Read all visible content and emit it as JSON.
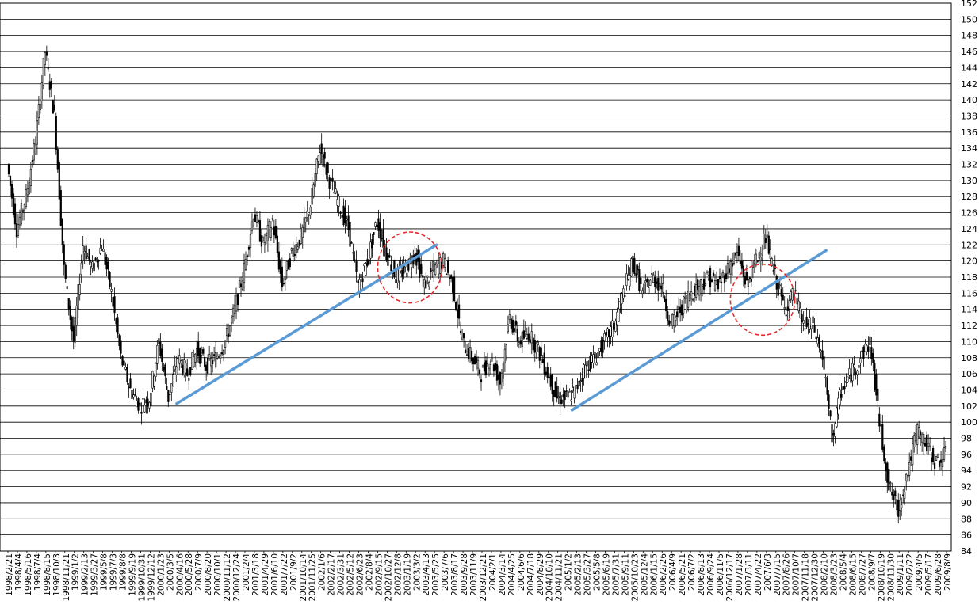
{
  "chart_data": {
    "type": "candlestick",
    "title": "",
    "xlabel": "",
    "ylabel": "",
    "ylim": [
      84,
      152
    ],
    "y_ticks": [
      84,
      86,
      88,
      90,
      92,
      94,
      96,
      98,
      100,
      102,
      104,
      106,
      108,
      110,
      112,
      114,
      116,
      118,
      120,
      122,
      124,
      126,
      128,
      130,
      132,
      134,
      136,
      138,
      140,
      142,
      144,
      146,
      148,
      150,
      152
    ],
    "y_axis_position": "right",
    "grid": true,
    "x_tick_labels": [
      "1998/2/21",
      "1998/4/4",
      "1998/5/16",
      "1998/7/4",
      "1998/8/15",
      "1998/10/3",
      "1998/11/21",
      "1999/1/2",
      "1999/2/13",
      "1999/3/27",
      "1999/5/8",
      "1999/7/3",
      "1999/8/8",
      "1999/9/19",
      "1999/10/31",
      "1999/12/12",
      "2000/1/23",
      "2000/3/5",
      "2000/4/16",
      "2000/5/28",
      "2000/7/9",
      "2000/8/20",
      "2000/10/1",
      "2000/11/12",
      "2000/12/24",
      "2001/2/4",
      "2001/3/18",
      "2001/4/29",
      "2001/6/10",
      "2001/7/22",
      "2001/9/2",
      "2001/10/14",
      "2001/11/25",
      "2002/1/6",
      "2002/2/17",
      "2002/3/31",
      "2002/5/12",
      "2002/6/23",
      "2002/8/4",
      "2002/9/15",
      "2002/10/27",
      "2002/12/8",
      "2003/1/19",
      "2003/3/2",
      "2003/4/13",
      "2003/5/25",
      "2003/7/6",
      "2003/8/17",
      "2003/9/28",
      "2003/11/9",
      "2003/12/21",
      "2004/2/1",
      "2004/3/14",
      "2004/4/25",
      "2004/6/6",
      "2004/7/18",
      "2004/8/29",
      "2004/10/10",
      "2004/11/21",
      "2005/1/2",
      "2005/2/13",
      "2005/3/27",
      "2005/5/8",
      "2005/6/19",
      "2005/7/31",
      "2005/9/11",
      "2005/10/23",
      "2005/12/4",
      "2006/1/15",
      "2006/2/26",
      "2006/4/9",
      "2006/5/21",
      "2006/7/2",
      "2006/8/13",
      "2006/9/24",
      "2006/11/5",
      "2006/12/17",
      "2007/1/28",
      "2007/3/11",
      "2007/4/22",
      "2007/6/3",
      "2007/7/15",
      "2007/8/26",
      "2007/10/7",
      "2007/11/18",
      "2007/12/30",
      "2008/2/10",
      "2008/3/23",
      "2008/5/4",
      "2008/6/15",
      "2008/7/27",
      "2008/9/7",
      "2008/10/19",
      "2008/11/30",
      "2009/1/11",
      "2009/2/22",
      "2009/4/5",
      "2009/5/17",
      "2009/6/28",
      "2009/8/9"
    ],
    "series": [
      {
        "values": [
          {
            "x": 0,
            "y": 132
          },
          {
            "x": 1,
            "y": 124
          },
          {
            "x": 2,
            "y": 128
          },
          {
            "x": 3,
            "y": 135
          },
          {
            "x": 4,
            "y": 146
          },
          {
            "x": 5,
            "y": 138
          },
          {
            "x": 6,
            "y": 119
          },
          {
            "x": 7,
            "y": 110
          },
          {
            "x": 8,
            "y": 122
          },
          {
            "x": 9,
            "y": 119
          },
          {
            "x": 10,
            "y": 122
          },
          {
            "x": 11,
            "y": 116
          },
          {
            "x": 12,
            "y": 108
          },
          {
            "x": 13,
            "y": 104
          },
          {
            "x": 14,
            "y": 102
          },
          {
            "x": 15,
            "y": 103
          },
          {
            "x": 16,
            "y": 110
          },
          {
            "x": 17,
            "y": 103
          },
          {
            "x": 18,
            "y": 108
          },
          {
            "x": 19,
            "y": 106
          },
          {
            "x": 20,
            "y": 109
          },
          {
            "x": 21,
            "y": 107
          },
          {
            "x": 22,
            "y": 108
          },
          {
            "x": 23,
            "y": 110
          },
          {
            "x": 24,
            "y": 114
          },
          {
            "x": 25,
            "y": 119
          },
          {
            "x": 26,
            "y": 126
          },
          {
            "x": 27,
            "y": 122
          },
          {
            "x": 28,
            "y": 125
          },
          {
            "x": 29,
            "y": 117
          },
          {
            "x": 30,
            "y": 121
          },
          {
            "x": 31,
            "y": 123
          },
          {
            "x": 32,
            "y": 127
          },
          {
            "x": 33,
            "y": 134
          },
          {
            "x": 34,
            "y": 130
          },
          {
            "x": 35,
            "y": 127
          },
          {
            "x": 36,
            "y": 124
          },
          {
            "x": 37,
            "y": 117
          },
          {
            "x": 38,
            "y": 120
          },
          {
            "x": 39,
            "y": 125
          },
          {
            "x": 40,
            "y": 121
          },
          {
            "x": 41,
            "y": 118
          },
          {
            "x": 42,
            "y": 119
          },
          {
            "x": 43,
            "y": 121
          },
          {
            "x": 44,
            "y": 117
          },
          {
            "x": 45,
            "y": 119
          },
          {
            "x": 46,
            "y": 120
          },
          {
            "x": 47,
            "y": 117
          },
          {
            "x": 48,
            "y": 110
          },
          {
            "x": 49,
            "y": 108
          },
          {
            "x": 50,
            "y": 106
          },
          {
            "x": 51,
            "y": 108
          },
          {
            "x": 52,
            "y": 105
          },
          {
            "x": 53,
            "y": 113
          },
          {
            "x": 54,
            "y": 110
          },
          {
            "x": 55,
            "y": 111
          },
          {
            "x": 56,
            "y": 109
          },
          {
            "x": 57,
            "y": 106
          },
          {
            "x": 58,
            "y": 103
          },
          {
            "x": 59,
            "y": 103
          },
          {
            "x": 60,
            "y": 104
          },
          {
            "x": 61,
            "y": 107
          },
          {
            "x": 62,
            "y": 108
          },
          {
            "x": 63,
            "y": 110
          },
          {
            "x": 64,
            "y": 112
          },
          {
            "x": 65,
            "y": 116
          },
          {
            "x": 66,
            "y": 120
          },
          {
            "x": 67,
            "y": 116
          },
          {
            "x": 68,
            "y": 118
          },
          {
            "x": 69,
            "y": 117
          },
          {
            "x": 70,
            "y": 112
          },
          {
            "x": 71,
            "y": 114
          },
          {
            "x": 72,
            "y": 116
          },
          {
            "x": 73,
            "y": 117
          },
          {
            "x": 74,
            "y": 118
          },
          {
            "x": 75,
            "y": 117
          },
          {
            "x": 76,
            "y": 119
          },
          {
            "x": 77,
            "y": 121
          },
          {
            "x": 78,
            "y": 117
          },
          {
            "x": 79,
            "y": 120
          },
          {
            "x": 80,
            "y": 123
          },
          {
            "x": 81,
            "y": 118
          },
          {
            "x": 82,
            "y": 114
          },
          {
            "x": 83,
            "y": 116
          },
          {
            "x": 84,
            "y": 112
          },
          {
            "x": 85,
            "y": 112
          },
          {
            "x": 86,
            "y": 108
          },
          {
            "x": 87,
            "y": 98
          },
          {
            "x": 88,
            "y": 104
          },
          {
            "x": 89,
            "y": 106
          },
          {
            "x": 90,
            "y": 108
          },
          {
            "x": 91,
            "y": 110
          },
          {
            "x": 92,
            "y": 100
          },
          {
            "x": 93,
            "y": 92
          },
          {
            "x": 94,
            "y": 89
          },
          {
            "x": 95,
            "y": 94
          },
          {
            "x": 96,
            "y": 99
          },
          {
            "x": 97,
            "y": 97
          },
          {
            "x": 98,
            "y": 95
          },
          {
            "x": 99,
            "y": 96
          }
        ]
      }
    ],
    "trendlines": [
      {
        "x1": 17.8,
        "y1": 102.3,
        "x2": 45.2,
        "y2": 122.0,
        "color": "#5b9bd5"
      },
      {
        "x1": 59.5,
        "y1": 101.5,
        "x2": 86.3,
        "y2": 121.3,
        "color": "#5b9bd5"
      }
    ],
    "circle_annotations": [
      {
        "cx": 42.4,
        "cy": 119.2,
        "rx": 3.4,
        "ry": 4.4,
        "color": "#e8282b",
        "style": "dashed"
      },
      {
        "cx": 79.6,
        "cy": 115.2,
        "rx": 3.4,
        "ry": 4.4,
        "color": "#e8282b",
        "style": "dashed"
      }
    ],
    "colors": {
      "candle": "#000000",
      "trendline": "#5b9bd5",
      "circle": "#e8282b",
      "grid": "#000000"
    }
  }
}
